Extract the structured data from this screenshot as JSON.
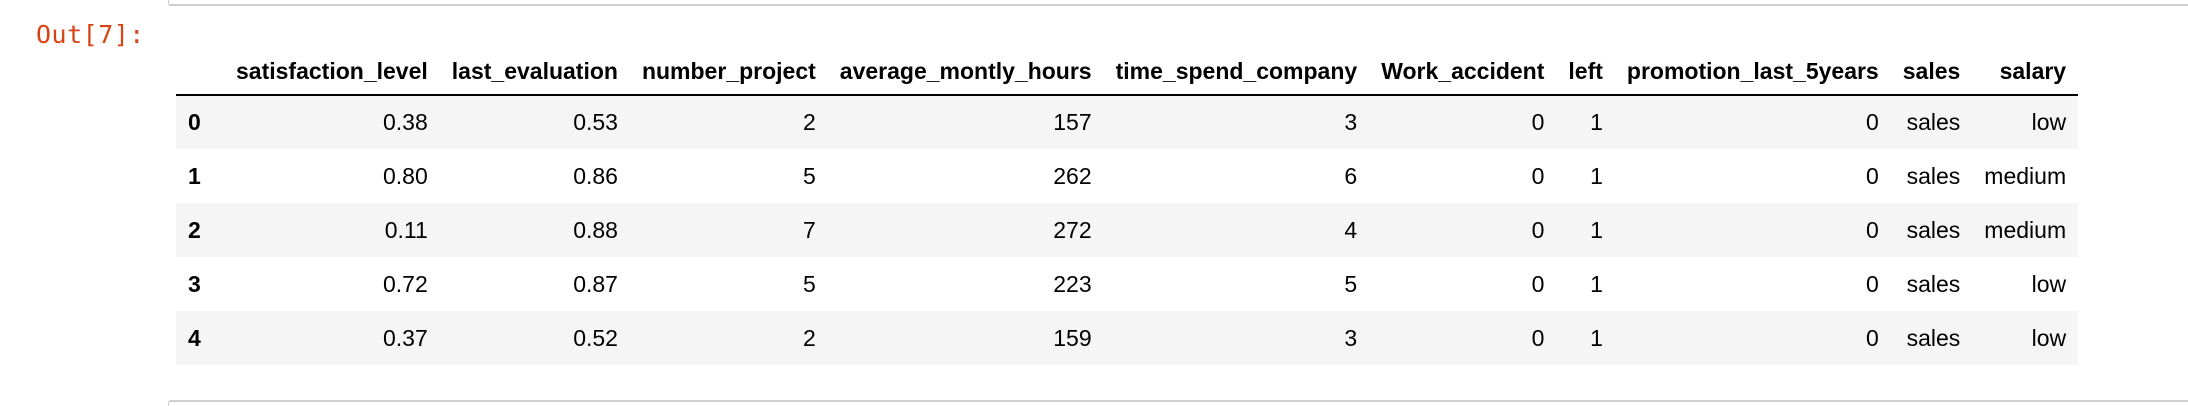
{
  "prompt": "Out[7]:",
  "table": {
    "columns": [
      "",
      "satisfaction_level",
      "last_evaluation",
      "number_project",
      "average_montly_hours",
      "time_spend_company",
      "Work_accident",
      "left",
      "promotion_last_5years",
      "sales",
      "salary"
    ],
    "rows": [
      [
        "0",
        "0.38",
        "0.53",
        "2",
        "157",
        "3",
        "0",
        "1",
        "0",
        "sales",
        "low"
      ],
      [
        "1",
        "0.80",
        "0.86",
        "5",
        "262",
        "6",
        "0",
        "1",
        "0",
        "sales",
        "medium"
      ],
      [
        "2",
        "0.11",
        "0.88",
        "7",
        "272",
        "4",
        "0",
        "1",
        "0",
        "sales",
        "medium"
      ],
      [
        "3",
        "0.72",
        "0.87",
        "5",
        "223",
        "5",
        "0",
        "1",
        "0",
        "sales",
        "low"
      ],
      [
        "4",
        "0.37",
        "0.52",
        "2",
        "159",
        "3",
        "0",
        "1",
        "0",
        "sales",
        "low"
      ]
    ]
  }
}
